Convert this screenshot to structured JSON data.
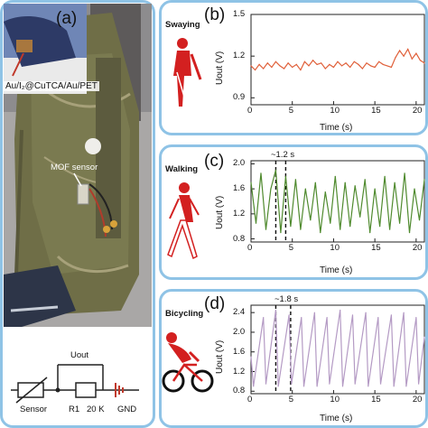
{
  "panel_a": {
    "label": "(a)",
    "inset_text": "Au/I₂@CuTCA/Au/PET",
    "sensor_label": "MOF sensor",
    "circuit": {
      "uout": "Uout",
      "sensor": "Sensor",
      "r1": "R1",
      "r_value": "20 K",
      "gnd": "GND"
    }
  },
  "chart_data": [
    {
      "id": "b",
      "type": "line",
      "panel_label": "(b)",
      "activity": "Swaying",
      "xlabel": "Time (s)",
      "ylabel": "Uout (V)",
      "xlim": [
        0,
        21
      ],
      "ylim": [
        0.85,
        1.5
      ],
      "xticks": [
        "0",
        "5",
        "10",
        "15",
        "20"
      ],
      "xtick_values": [
        0,
        5,
        10,
        15,
        20
      ],
      "yticks": [
        "0.9",
        "1.2",
        "1.5"
      ],
      "ytick_values": [
        0.9,
        1.2,
        1.5
      ],
      "color": "#e0603a",
      "x": [
        0,
        0.5,
        1,
        1.5,
        2,
        2.5,
        3,
        3.5,
        4,
        4.5,
        5,
        5.5,
        6,
        6.5,
        7,
        7.5,
        8,
        8.5,
        9,
        9.5,
        10,
        10.5,
        11,
        11.5,
        12,
        12.5,
        13,
        13.5,
        14,
        14.5,
        15,
        15.5,
        16,
        16.5,
        17,
        17.5,
        18,
        18.5,
        19,
        19.5,
        20,
        20.5,
        21
      ],
      "values": [
        1.13,
        1.1,
        1.14,
        1.11,
        1.15,
        1.12,
        1.16,
        1.13,
        1.11,
        1.15,
        1.12,
        1.14,
        1.1,
        1.16,
        1.13,
        1.17,
        1.14,
        1.15,
        1.11,
        1.14,
        1.12,
        1.16,
        1.13,
        1.15,
        1.12,
        1.16,
        1.14,
        1.11,
        1.15,
        1.13,
        1.12,
        1.16,
        1.14,
        1.13,
        1.12,
        1.19,
        1.24,
        1.2,
        1.25,
        1.18,
        1.22,
        1.17,
        1.15
      ]
    },
    {
      "id": "c",
      "type": "line",
      "panel_label": "(c)",
      "activity": "Walking",
      "annotation": "~1.2 s",
      "xlabel": "Time (s)",
      "ylabel": "Uout (V)",
      "xlim": [
        0,
        21
      ],
      "ylim": [
        0.75,
        2.05
      ],
      "xticks": [
        "0",
        "5",
        "10",
        "15",
        "20"
      ],
      "xtick_values": [
        0,
        5,
        10,
        15,
        20
      ],
      "yticks": [
        "0.8",
        "1.2",
        "1.6",
        "2.0"
      ],
      "ytick_values": [
        0.8,
        1.2,
        1.6,
        2.0
      ],
      "marker_lines": [
        3.0,
        4.2
      ],
      "color": "#4f8a2e",
      "x": [
        0,
        0.6,
        1.2,
        1.8,
        2.4,
        3.0,
        3.6,
        4.2,
        4.8,
        5.4,
        6.0,
        6.6,
        7.2,
        7.8,
        8.4,
        9.0,
        9.6,
        10.2,
        10.8,
        11.4,
        12.0,
        12.6,
        13.2,
        13.8,
        14.4,
        15.0,
        15.6,
        16.2,
        16.8,
        17.4,
        18.0,
        18.6,
        19.2,
        19.8,
        20.4,
        21.0
      ],
      "values": [
        1.7,
        1.05,
        1.85,
        0.95,
        1.6,
        1.9,
        0.9,
        1.8,
        1.0,
        1.75,
        0.95,
        1.6,
        1.1,
        1.7,
        0.9,
        1.55,
        1.05,
        1.8,
        0.95,
        1.7,
        1.0,
        1.65,
        1.15,
        1.75,
        0.9,
        1.6,
        1.0,
        1.8,
        0.95,
        1.7,
        1.05,
        1.85,
        0.9,
        1.6,
        1.1,
        1.75
      ]
    },
    {
      "id": "d",
      "type": "line",
      "panel_label": "(d)",
      "activity": "Bicycling",
      "annotation": "~1.8 s",
      "xlabel": "Time (s)",
      "ylabel": "Uout (V)",
      "xlim": [
        0,
        21
      ],
      "ylim": [
        0.75,
        2.55
      ],
      "xticks": [
        "0",
        "5",
        "10",
        "15",
        "20"
      ],
      "xtick_values": [
        0,
        5,
        10,
        15,
        20
      ],
      "yticks": [
        "0.8",
        "1.2",
        "1.6",
        "2.0",
        "2.4"
      ],
      "ytick_values": [
        0.8,
        1.2,
        1.6,
        2.0,
        2.4
      ],
      "marker_lines": [
        3.0,
        4.8
      ],
      "color": "#b49ac4",
      "x": [
        0,
        0.3,
        1.5,
        1.8,
        3.0,
        3.3,
        4.6,
        4.9,
        6.1,
        6.4,
        7.7,
        8.0,
        9.2,
        9.5,
        10.8,
        11.1,
        12.3,
        12.6,
        13.9,
        14.2,
        15.4,
        15.7,
        17.0,
        17.3,
        18.5,
        18.8,
        20.0,
        20.3,
        21.0
      ],
      "values": [
        1.5,
        0.9,
        2.3,
        0.95,
        2.45,
        0.9,
        2.35,
        0.95,
        2.3,
        0.9,
        2.4,
        0.9,
        2.3,
        0.95,
        2.45,
        0.9,
        2.35,
        0.95,
        2.4,
        0.9,
        2.3,
        0.95,
        2.35,
        0.9,
        2.4,
        0.9,
        2.3,
        0.95,
        1.9
      ]
    }
  ]
}
